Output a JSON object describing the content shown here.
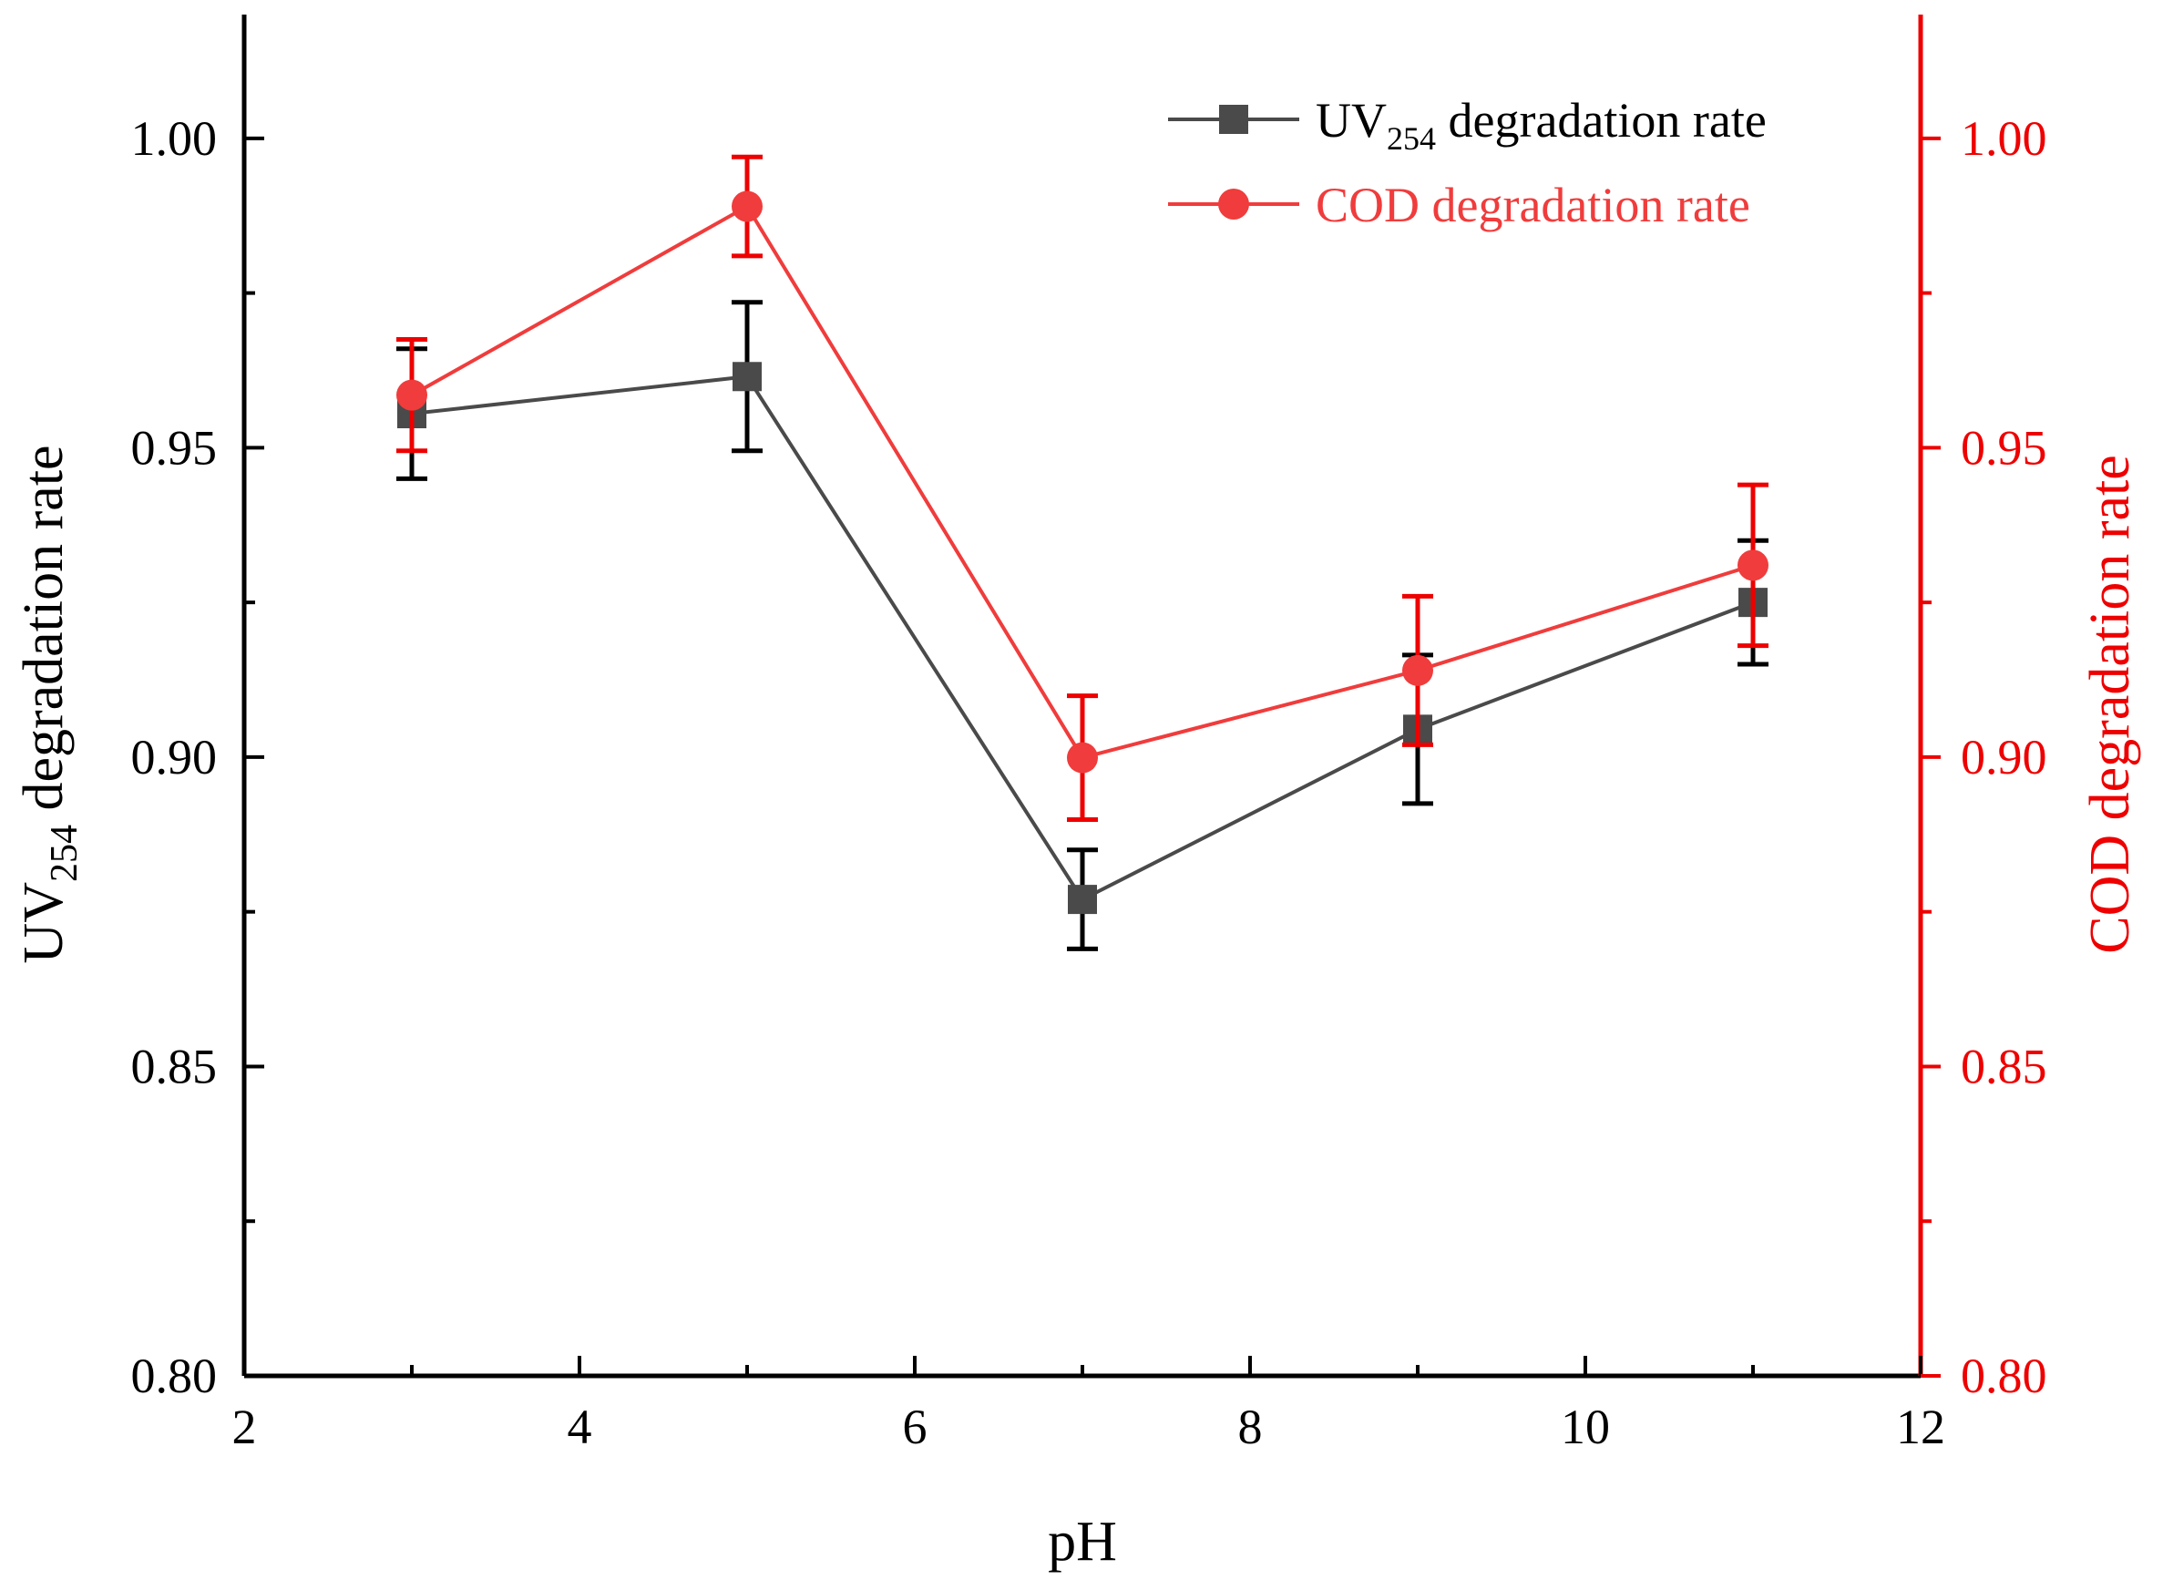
{
  "colors": {
    "left_series": "#4a4a4a",
    "left_errorbar": "#000000",
    "right_series": "#f03c3c",
    "right_errorbar": "#ee0000",
    "right_axis": "#ee0000",
    "axis": "#000000"
  },
  "chart_data": {
    "type": "line",
    "title": "",
    "xlabel": "pH",
    "ylabel_left": {
      "main": "UV",
      "sub": "254",
      "rest": " degradation rate"
    },
    "ylabel_right": "COD degradation rate",
    "xlim": [
      2,
      12
    ],
    "ylim_left": [
      0.8,
      1.02
    ],
    "ylim_right": [
      0.8,
      1.02
    ],
    "x_ticks": [
      2,
      4,
      6,
      8,
      10,
      12
    ],
    "x_tick_labels": [
      "2",
      "4",
      "6",
      "8",
      "10",
      "12"
    ],
    "y_ticks": [
      0.8,
      0.85,
      0.9,
      0.95,
      1.0
    ],
    "y_tick_labels": [
      "0.80",
      "0.85",
      "0.90",
      "0.95",
      "1.00"
    ],
    "legend_position": "top-right",
    "series": [
      {
        "name": "UV254 degradation rate",
        "legend_label": {
          "main": "UV",
          "sub": "254",
          "rest": " degradation rate"
        },
        "axis": "left",
        "marker": "square",
        "x": [
          3,
          5,
          7,
          9,
          11
        ],
        "y": [
          0.9555,
          0.9615,
          0.877,
          0.9045,
          0.925
        ],
        "err": [
          0.0105,
          0.012,
          0.008,
          0.012,
          0.01
        ]
      },
      {
        "name": "COD degradation rate",
        "legend_label": {
          "main": "COD degradation rate",
          "sub": "",
          "rest": ""
        },
        "axis": "right",
        "marker": "circle",
        "x": [
          3,
          5,
          7,
          9,
          11
        ],
        "y": [
          0.9585,
          0.989,
          0.8999,
          0.914,
          0.931
        ],
        "err": [
          0.009,
          0.008,
          0.01,
          0.012,
          0.013
        ]
      }
    ]
  }
}
